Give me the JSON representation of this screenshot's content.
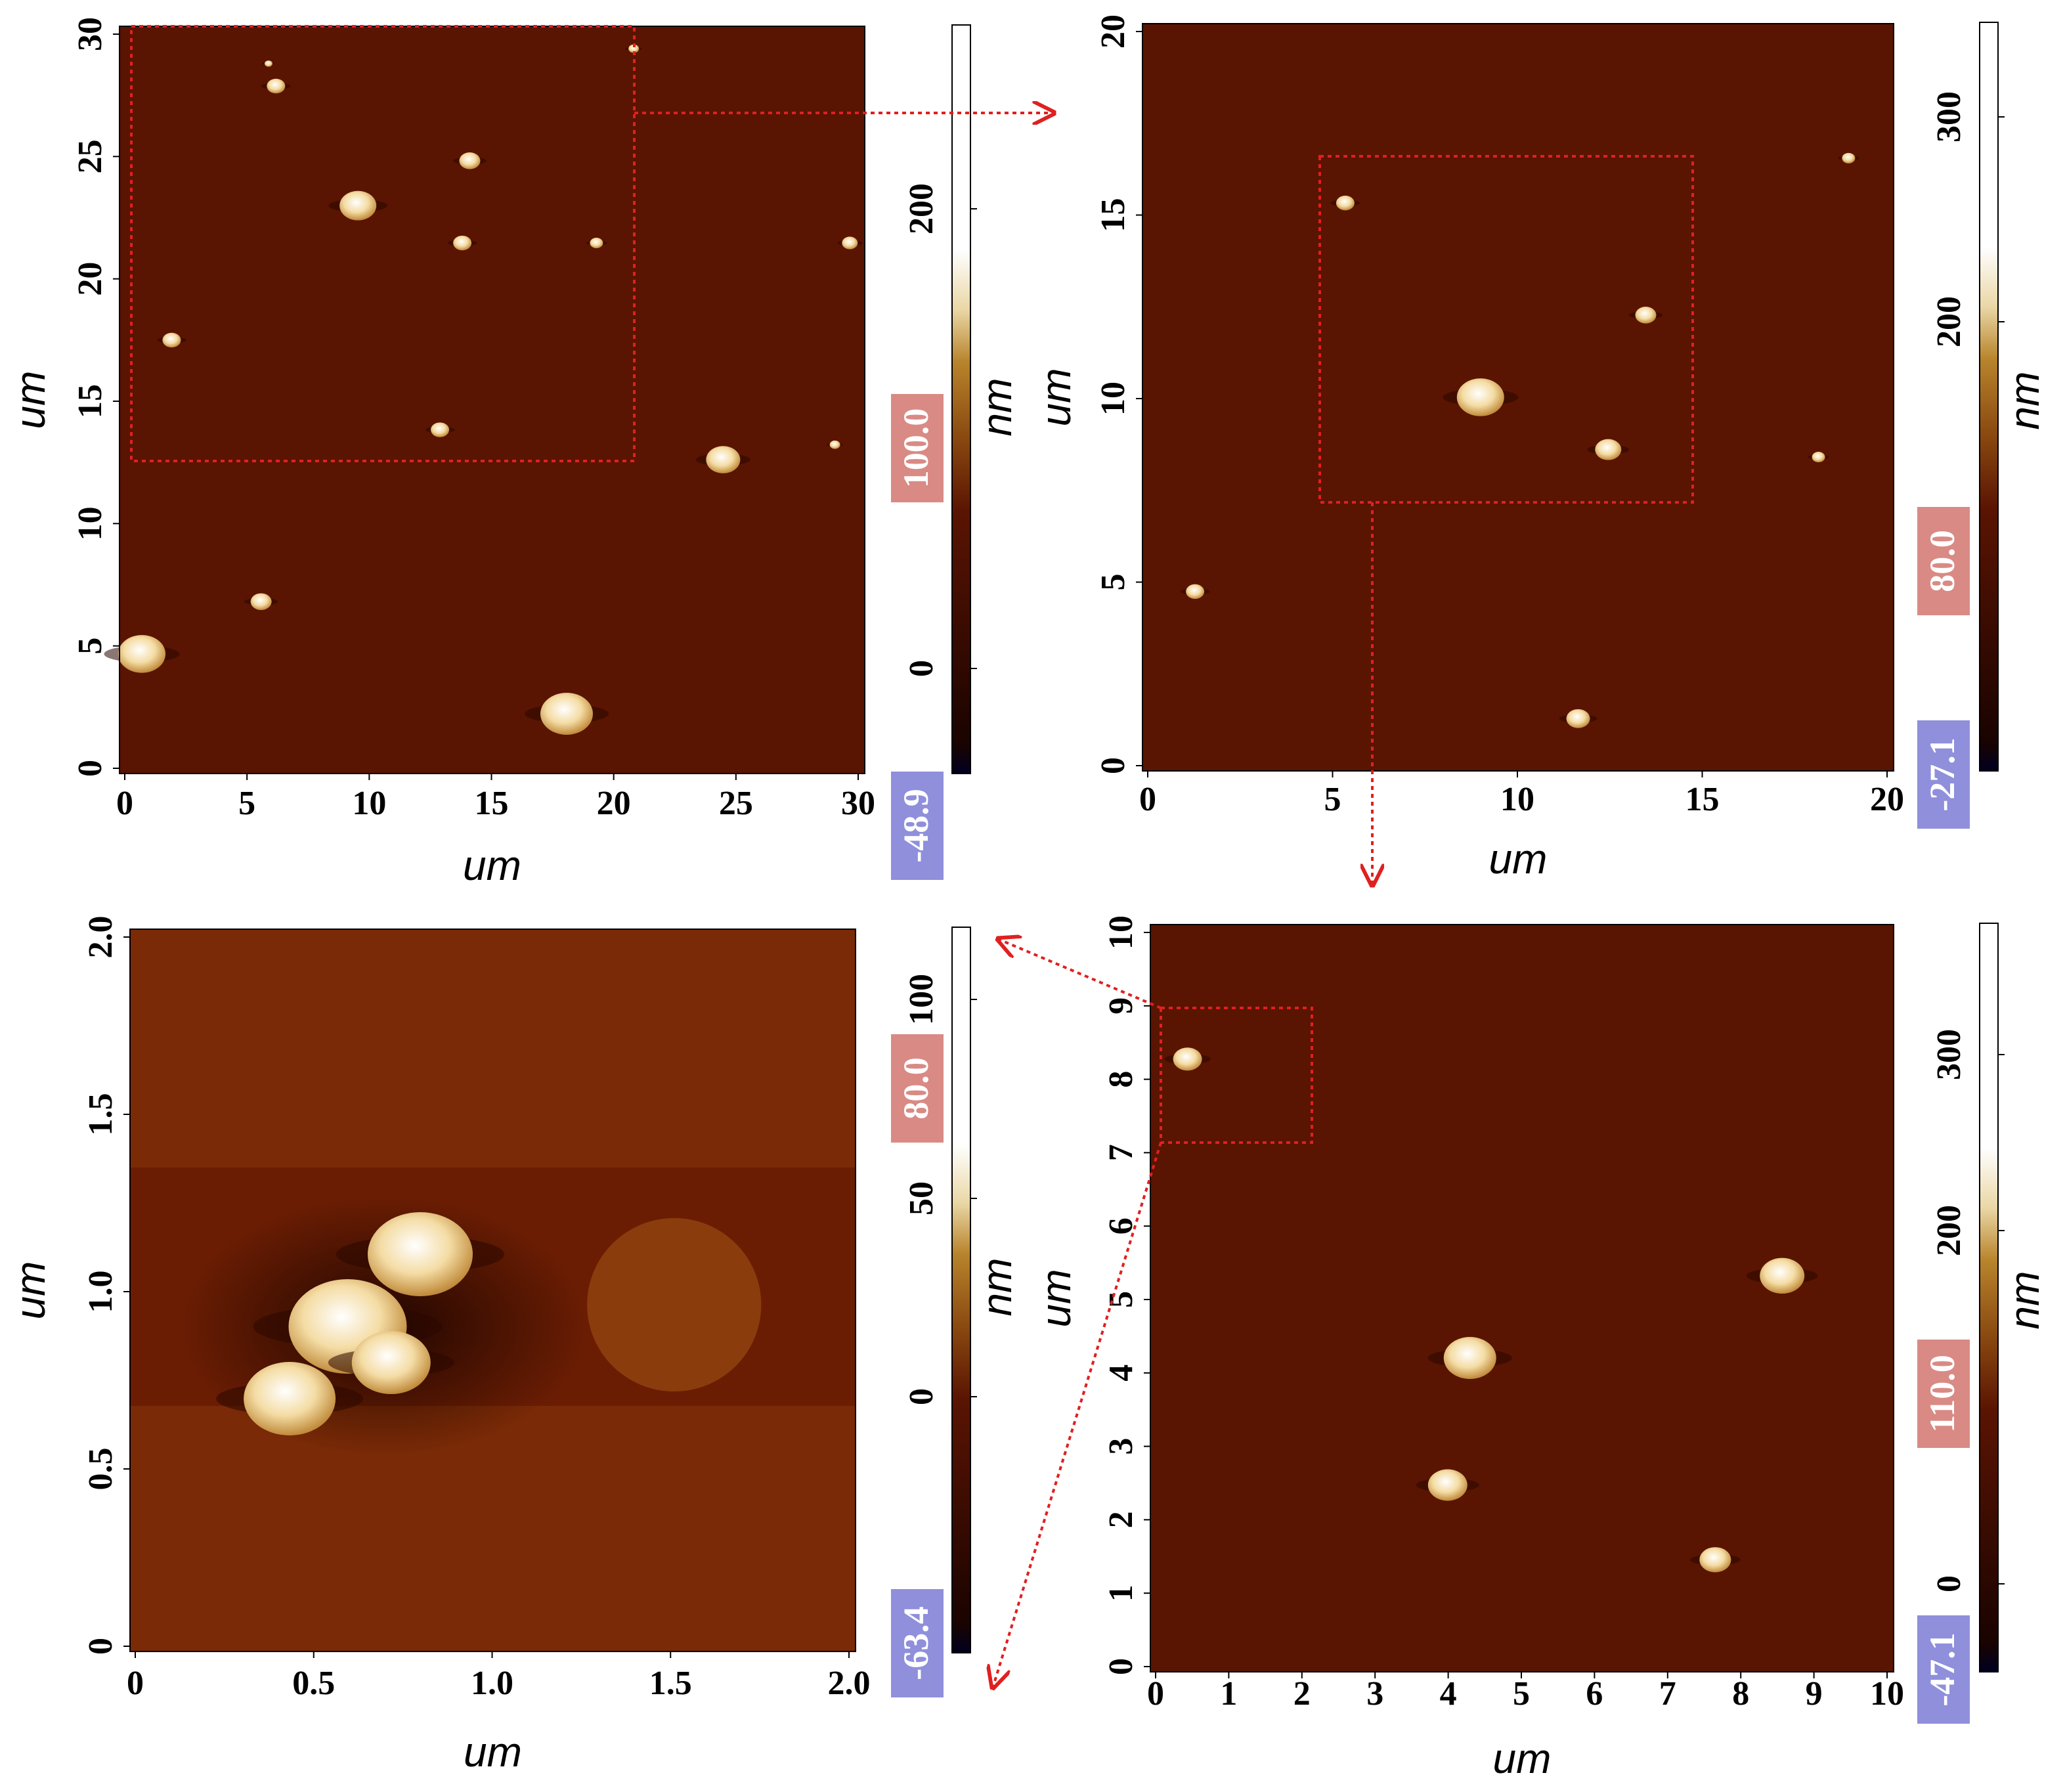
{
  "panels": [
    {
      "id": "a",
      "xlabel": "um",
      "ylabel": "um",
      "x_ticks": [
        "0",
        "5",
        "10",
        "15",
        "20",
        "25",
        "30"
      ],
      "y_ticks": [
        "0",
        "5",
        "10",
        "15",
        "20",
        "25",
        "30"
      ],
      "colorbar": {
        "unit": "nm",
        "ticks": [
          "0",
          "200"
        ],
        "max_badge": "100.0",
        "min_badge": "-48.9"
      }
    },
    {
      "id": "b",
      "xlabel": "um",
      "ylabel": "um",
      "x_ticks": [
        "0",
        "5",
        "10",
        "15",
        "20"
      ],
      "y_ticks": [
        "0",
        "5",
        "10",
        "15",
        "20"
      ],
      "colorbar": {
        "unit": "nm",
        "ticks": [
          "200",
          "300"
        ],
        "max_badge": "80.0",
        "min_badge": "-27.1"
      }
    },
    {
      "id": "c",
      "xlabel": "um",
      "ylabel": "um",
      "x_ticks": [
        "0",
        "1",
        "2",
        "3",
        "4",
        "5",
        "6",
        "7",
        "8",
        "9",
        "10"
      ],
      "y_ticks": [
        "0",
        "1",
        "2",
        "3",
        "4",
        "5",
        "6",
        "7",
        "8",
        "9",
        "10"
      ],
      "colorbar": {
        "unit": "nm",
        "ticks": [
          "0",
          "200",
          "300"
        ],
        "max_badge": "110.0",
        "min_badge": "-47.1"
      }
    },
    {
      "id": "d",
      "xlabel": "um",
      "ylabel": "um",
      "x_ticks": [
        "0",
        "0.5",
        "1.0",
        "1.5",
        "2.0"
      ],
      "y_ticks": [
        "0",
        "0.5",
        "1.0",
        "1.5",
        "2.0"
      ],
      "colorbar": {
        "unit": "nm",
        "ticks": [
          "0",
          "50",
          "100"
        ],
        "max_badge": "80.0",
        "min_badge": "-63.4"
      }
    }
  ],
  "colors": {
    "substrate_dark": "#5a1402",
    "substrate_mid": "#6b1e04",
    "particle": "#fff6dc",
    "zoom_box": "#e02020",
    "badge_max": "#d98a84",
    "badge_min": "#8f8fdc"
  }
}
